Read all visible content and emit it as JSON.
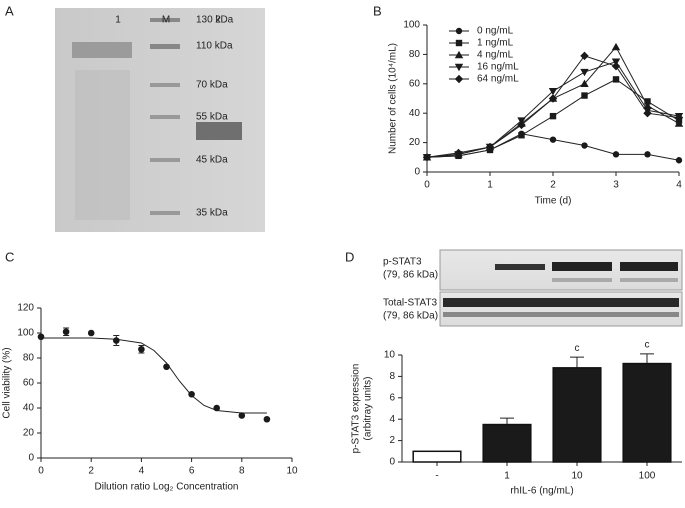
{
  "panel_labels": [
    "A",
    "B",
    "C",
    "D"
  ],
  "gel": {
    "lanes": [
      "1",
      "M",
      "2"
    ],
    "markers": [
      "130 kDa",
      "110 kDa",
      "70 kDa",
      "55 kDa",
      "45 kDa",
      "35 kDa"
    ]
  },
  "blots": [
    [
      "p-STAT3",
      "(79, 86 kDa)"
    ],
    [
      "Total-STAT3",
      "(79, 86 kDa)"
    ]
  ],
  "chart_data": [
    {
      "type": "line",
      "x": [
        0,
        0.5,
        1,
        1.5,
        2,
        2.5,
        3,
        3.5,
        4
      ],
      "xlim": [
        0,
        4
      ],
      "xticks": [
        0,
        1,
        2,
        3,
        4
      ],
      "ylim": [
        0,
        100
      ],
      "yticks": [
        0,
        20,
        40,
        60,
        80,
        100
      ],
      "xlabel": "Time (d)",
      "ylabel": "Number of cells (10⁴/mL)",
      "legend": "upper left",
      "series": [
        {
          "name": "0 ng/mL",
          "color": "#1a1a1a",
          "marker": "circle",
          "values": [
            10,
            11,
            15,
            26,
            22,
            18,
            12,
            12,
            8
          ]
        },
        {
          "name": "1 ng/mL",
          "color": "#1a1a1a",
          "marker": "square",
          "values": [
            10,
            11,
            15,
            25,
            38,
            52,
            63,
            48,
            35
          ]
        },
        {
          "name": "4 ng/mL",
          "color": "#1a1a1a",
          "marker": "triangle-up",
          "values": [
            10,
            12,
            17,
            33,
            50,
            60,
            85,
            45,
            33
          ]
        },
        {
          "name": "16 ng/mL",
          "color": "#1a1a1a",
          "marker": "triangle-down",
          "values": [
            10,
            12,
            17,
            35,
            55,
            68,
            75,
            42,
            38
          ]
        },
        {
          "name": "64 ng/mL",
          "color": "#1a1a1a",
          "marker": "diamond",
          "values": [
            10,
            13,
            17,
            32,
            50,
            79,
            72,
            40,
            37
          ]
        }
      ]
    },
    {
      "type": "scatter",
      "x": [
        0,
        1,
        2,
        3,
        4,
        5,
        6,
        7,
        8,
        9
      ],
      "y": [
        97,
        101,
        100,
        94,
        87,
        73,
        51,
        40,
        34,
        31
      ],
      "errors": [
        0,
        3,
        0,
        4,
        3,
        0,
        0,
        0,
        0,
        0
      ],
      "color": "#1a1a1a",
      "fit": {
        "x": [
          0,
          2,
          3,
          4,
          4.5,
          5,
          5.5,
          6,
          6.5,
          7,
          8,
          9
        ],
        "y": [
          96,
          96,
          95,
          92,
          86,
          76,
          62,
          50,
          42,
          38,
          36,
          36
        ]
      },
      "xlim": [
        0,
        10
      ],
      "xticks": [
        0,
        2,
        4,
        6,
        8,
        10
      ],
      "ylim": [
        0,
        120
      ],
      "yticks": [
        0,
        20,
        40,
        60,
        80,
        100,
        120
      ],
      "xlabel": "Dilution ratio Log₂ Concentration",
      "ylabel": "Cell viability (%)"
    },
    {
      "type": "bar",
      "categories": [
        "-",
        "1",
        "10",
        "100"
      ],
      "values": [
        1,
        3.5,
        8.8,
        9.2
      ],
      "errors": [
        0,
        0.6,
        1.0,
        0.9
      ],
      "colors": [
        "#ffffff",
        "#1a1a1a",
        "#1a1a1a",
        "#1a1a1a"
      ],
      "annotations": [
        null,
        null,
        "c",
        "c"
      ],
      "ylim": [
        0,
        10
      ],
      "yticks": [
        0,
        2,
        4,
        6,
        8,
        10
      ],
      "xlabel": "rhIL-6 (ng/mL)",
      "ylabel": [
        "p-STAT3 expression",
        "(arbitray units)"
      ]
    }
  ]
}
